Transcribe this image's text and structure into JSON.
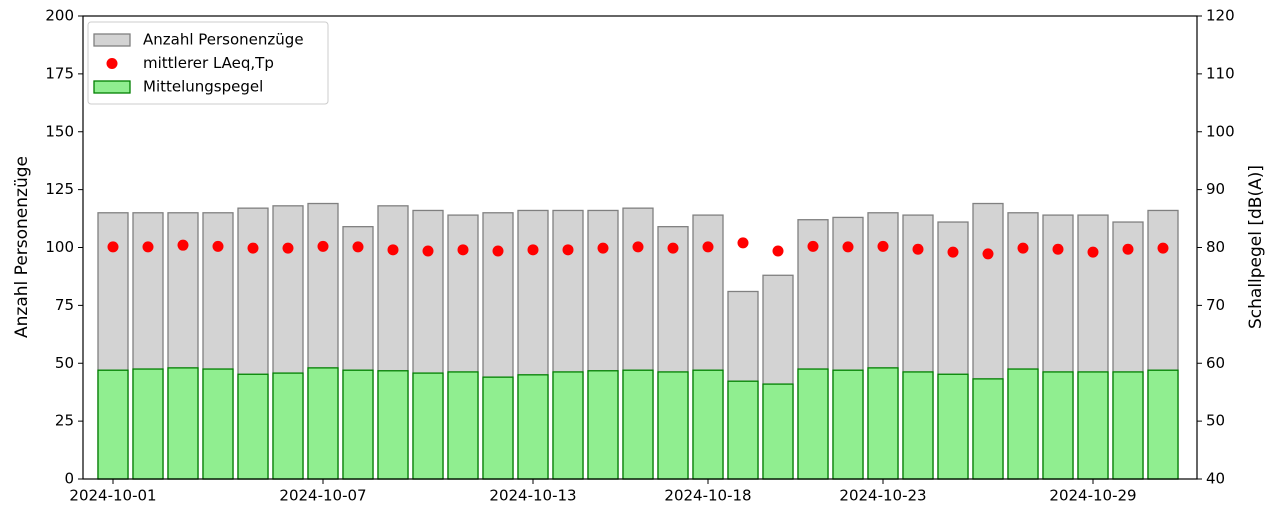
{
  "chart_data": {
    "type": "bar",
    "y_label": "Anzahl Personenzüge",
    "y2_label": "Schallpegel [dB(A)]",
    "categories": [
      "2024-10-01",
      null,
      null,
      null,
      null,
      null,
      "2024-10-07",
      null,
      null,
      null,
      null,
      null,
      "2024-10-13",
      null,
      null,
      null,
      null,
      "2024-10-18",
      null,
      null,
      null,
      null,
      "2024-10-23",
      null,
      null,
      null,
      null,
      null,
      "2024-10-29",
      null,
      null
    ],
    "series": [
      {
        "name": "Anzahl Personenzüge",
        "type": "bar",
        "axis": "y",
        "color": "#d3d3d3",
        "edgecolor": "#808080",
        "values": [
          115,
          115,
          115,
          115,
          117,
          118,
          119,
          109,
          118,
          116,
          114,
          115,
          116,
          116,
          116,
          117,
          109,
          114,
          81,
          88,
          112,
          113,
          115,
          114,
          111,
          119,
          115,
          114,
          114,
          111,
          116
        ]
      },
      {
        "name": "mittlerer LAeq,Tp",
        "type": "scatter",
        "axis": "y2",
        "color": "#ff0000",
        "values": [
          80.1,
          80.1,
          80.4,
          80.2,
          79.9,
          79.9,
          80.2,
          80.1,
          79.6,
          79.4,
          79.6,
          79.4,
          79.6,
          79.6,
          79.9,
          80.1,
          79.9,
          80.1,
          80.8,
          79.4,
          80.2,
          80.1,
          80.2,
          79.7,
          79.2,
          78.9,
          79.9,
          79.7,
          79.2,
          79.7,
          79.9
        ]
      },
      {
        "name": "Mittelungspegel",
        "type": "bar",
        "axis": "y2",
        "color": "#90ee90",
        "edgecolor": "#008000",
        "values": [
          58.8,
          59.0,
          59.2,
          59.0,
          58.1,
          58.3,
          59.2,
          58.8,
          58.7,
          58.3,
          58.5,
          57.6,
          58.0,
          58.5,
          58.7,
          58.8,
          58.5,
          58.8,
          56.9,
          56.4,
          59.0,
          58.8,
          59.2,
          58.5,
          58.1,
          57.3,
          59.0,
          58.5,
          58.5,
          58.5,
          58.8
        ]
      }
    ],
    "ylim": [
      0,
      200
    ],
    "yticks": [
      0,
      25,
      50,
      75,
      100,
      125,
      150,
      175,
      200
    ],
    "y2lim": [
      40,
      120
    ],
    "y2ticks": [
      40,
      50,
      60,
      70,
      80,
      90,
      100,
      110,
      120
    ],
    "legend": "upper left",
    "grid": false
  }
}
